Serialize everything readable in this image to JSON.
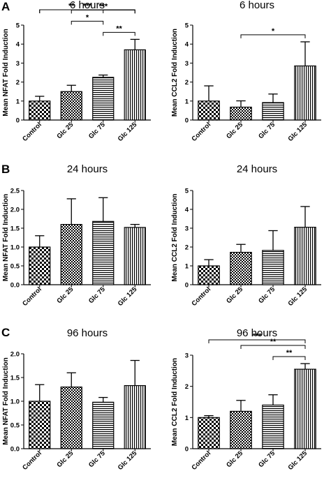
{
  "panels": [
    {
      "letter": "A"
    },
    {
      "letter": "B"
    },
    {
      "letter": "C"
    }
  ],
  "chart_data": [
    {
      "type": "bar",
      "panel": "A",
      "title": "6 hours",
      "ylabel": "Mean NFAT Fold Induction",
      "categories": [
        "Control",
        "Glc 25",
        "Glc 75",
        "Glc 125"
      ],
      "values": [
        1.0,
        1.5,
        2.25,
        3.7
      ],
      "errors": [
        0.25,
        0.33,
        0.12,
        0.55
      ],
      "ylim": [
        0,
        5
      ],
      "yticks": [
        "0",
        "1",
        "2",
        "3",
        "4",
        "5"
      ],
      "significance": [
        {
          "from": 0,
          "to": 3,
          "label": "***"
        },
        {
          "from": 1,
          "to": 3,
          "label": "***"
        },
        {
          "from": 2,
          "to": 3,
          "label": "**"
        },
        {
          "from": 0,
          "to": 2,
          "label": "**"
        },
        {
          "from": 1,
          "to": 2,
          "label": "*"
        }
      ]
    },
    {
      "type": "bar",
      "panel": "A",
      "title": "6 hours",
      "ylabel": "Mean CCL2 Fold Induction",
      "categories": [
        "Control",
        "Glc 25",
        "Glc 75",
        "Glc 125"
      ],
      "values": [
        1.0,
        0.68,
        0.92,
        2.85
      ],
      "errors": [
        0.8,
        0.33,
        0.45,
        1.27
      ],
      "ylim": [
        0,
        5
      ],
      "yticks": [
        "0",
        "1",
        "2",
        "3",
        "4",
        "5"
      ],
      "significance": [
        {
          "from": 1,
          "to": 3,
          "label": "*"
        }
      ]
    },
    {
      "type": "bar",
      "panel": "B",
      "title": "24 hours",
      "ylabel": "Mean NFAT Fold Induction",
      "categories": [
        "Control",
        "Glc 25",
        "Glc 75",
        "Glc 125"
      ],
      "values": [
        1.0,
        1.6,
        1.68,
        1.52
      ],
      "errors": [
        0.3,
        0.68,
        0.63,
        0.08
      ],
      "ylim": [
        0,
        2.5
      ],
      "yticks": [
        "0.0",
        "0.5",
        "1.0",
        "1.5",
        "2.0",
        "2.5"
      ],
      "significance": []
    },
    {
      "type": "bar",
      "panel": "B",
      "title": "24 hours",
      "ylabel": "Mean CCL2 Fold Induction",
      "categories": [
        "Control",
        "Glc 25",
        "Glc 75",
        "Glc 125"
      ],
      "values": [
        1.0,
        1.72,
        1.82,
        3.05
      ],
      "errors": [
        0.33,
        0.42,
        1.05,
        1.1
      ],
      "ylim": [
        0,
        5
      ],
      "yticks": [
        "0",
        "1",
        "2",
        "3",
        "4",
        "5"
      ],
      "significance": []
    },
    {
      "type": "bar",
      "panel": "C",
      "title": "96 hours",
      "ylabel": "Mean NFAT Fold Induction",
      "categories": [
        "Control",
        "Glc 25",
        "Glc 75",
        "Glc 125"
      ],
      "values": [
        1.0,
        1.3,
        0.98,
        1.33
      ],
      "errors": [
        0.35,
        0.3,
        0.1,
        0.53
      ],
      "ylim": [
        0,
        2.0
      ],
      "yticks": [
        "0.0",
        "0.5",
        "1.0",
        "1.5",
        "2.0"
      ],
      "significance": []
    },
    {
      "type": "bar",
      "panel": "C",
      "title": "96 hours",
      "ylabel": "Mean CCL2 Fold Induction",
      "categories": [
        "Control",
        "Glc 25",
        "Glc 75",
        "Glc 125"
      ],
      "values": [
        1.0,
        1.2,
        1.4,
        2.55
      ],
      "errors": [
        0.06,
        0.35,
        0.33,
        0.18
      ],
      "ylim": [
        0,
        3
      ],
      "yticks": [
        "0",
        "1",
        "2",
        "3"
      ],
      "significance": [
        {
          "from": 0,
          "to": 3,
          "label": "***"
        },
        {
          "from": 1,
          "to": 3,
          "label": "**"
        },
        {
          "from": 2,
          "to": 3,
          "label": "**"
        }
      ]
    }
  ]
}
